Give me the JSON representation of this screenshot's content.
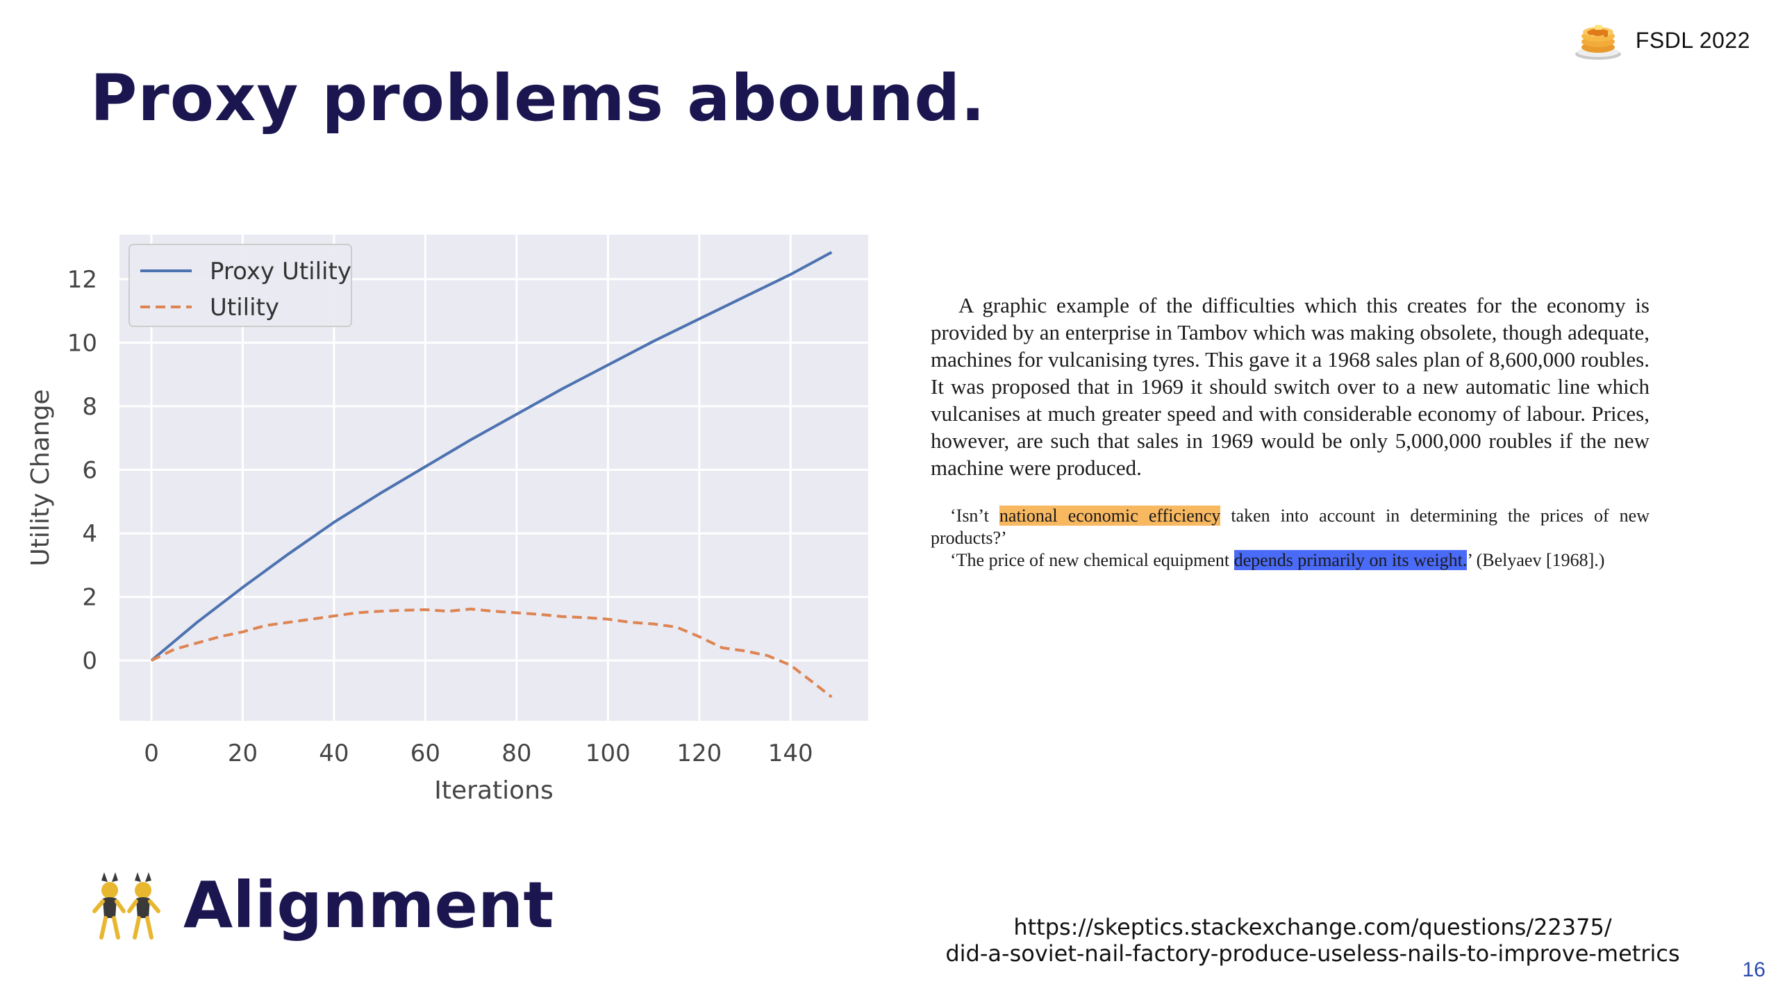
{
  "slide": {
    "title": "Proxy problems abound.",
    "brand": "FSDL 2022",
    "footer_heading": "Alignment",
    "link_line1": "https://skeptics.stackexchange.com/questions/22375/",
    "link_line2": "did-a-soviet-nail-factory-produce-useless-nails-to-improve-metrics",
    "page_number": "16"
  },
  "excerpt": {
    "paragraph": "A graphic example of the difficulties which this creates for the economy is provided by an enterprise in Tambov which was making obsolete, though adequate, machines for vulcanising tyres. This gave it a 1968 sales plan of 8,600,000 roubles. It was proposed that in 1969 it should switch over to a new automatic line which vulcanises at much greater speed and with considerable economy of labour. Prices, however, are such that sales in 1969 would be only 5,000,000 roubles if the new machine were produced.",
    "quote1_before": "‘Isn’t ",
    "quote1_highlight": "national economic efficiency",
    "quote1_after": " taken into account in determining the prices of new products?’",
    "quote2_before": "‘The price of new chemical equipment ",
    "quote2_highlight": "depends primarily on its weight.",
    "quote2_after": "’ (Belyaev [1968].)",
    "highlight_colors": {
      "orange": "#f8b860",
      "blue": "#4a6af8"
    }
  },
  "chart_data": {
    "type": "line",
    "title": "",
    "xlabel": "Iterations",
    "ylabel": "Utility Change",
    "xlim": [
      -7,
      157
    ],
    "ylim": [
      -1.9,
      13.4
    ],
    "xticks": [
      0,
      20,
      40,
      60,
      80,
      100,
      120,
      140
    ],
    "yticks": [
      0,
      2,
      4,
      6,
      8,
      10,
      12
    ],
    "grid": true,
    "legend_position": "top-left",
    "background": "#eaeaf2",
    "series": [
      {
        "name": "Proxy Utility",
        "style": "solid",
        "color": "#4c72b0",
        "x": [
          0,
          10,
          20,
          30,
          40,
          50,
          60,
          70,
          80,
          90,
          100,
          110,
          120,
          130,
          140,
          149
        ],
        "y": [
          0,
          1.2,
          2.3,
          3.35,
          4.35,
          5.25,
          6.1,
          6.95,
          7.75,
          8.55,
          9.3,
          10.05,
          10.75,
          11.45,
          12.15,
          12.85
        ]
      },
      {
        "name": "Utility",
        "style": "dashed",
        "color": "#dd8452",
        "x": [
          0,
          5,
          10,
          15,
          20,
          25,
          30,
          35,
          40,
          45,
          50,
          55,
          60,
          65,
          70,
          75,
          80,
          85,
          90,
          95,
          100,
          105,
          110,
          115,
          120,
          125,
          130,
          135,
          140,
          145,
          149
        ],
        "y": [
          0,
          0.35,
          0.55,
          0.75,
          0.9,
          1.1,
          1.2,
          1.3,
          1.4,
          1.5,
          1.55,
          1.58,
          1.6,
          1.55,
          1.62,
          1.55,
          1.5,
          1.45,
          1.38,
          1.35,
          1.3,
          1.2,
          1.15,
          1.05,
          0.75,
          0.4,
          0.3,
          0.15,
          -0.15,
          -0.7,
          -1.15
        ]
      }
    ]
  }
}
